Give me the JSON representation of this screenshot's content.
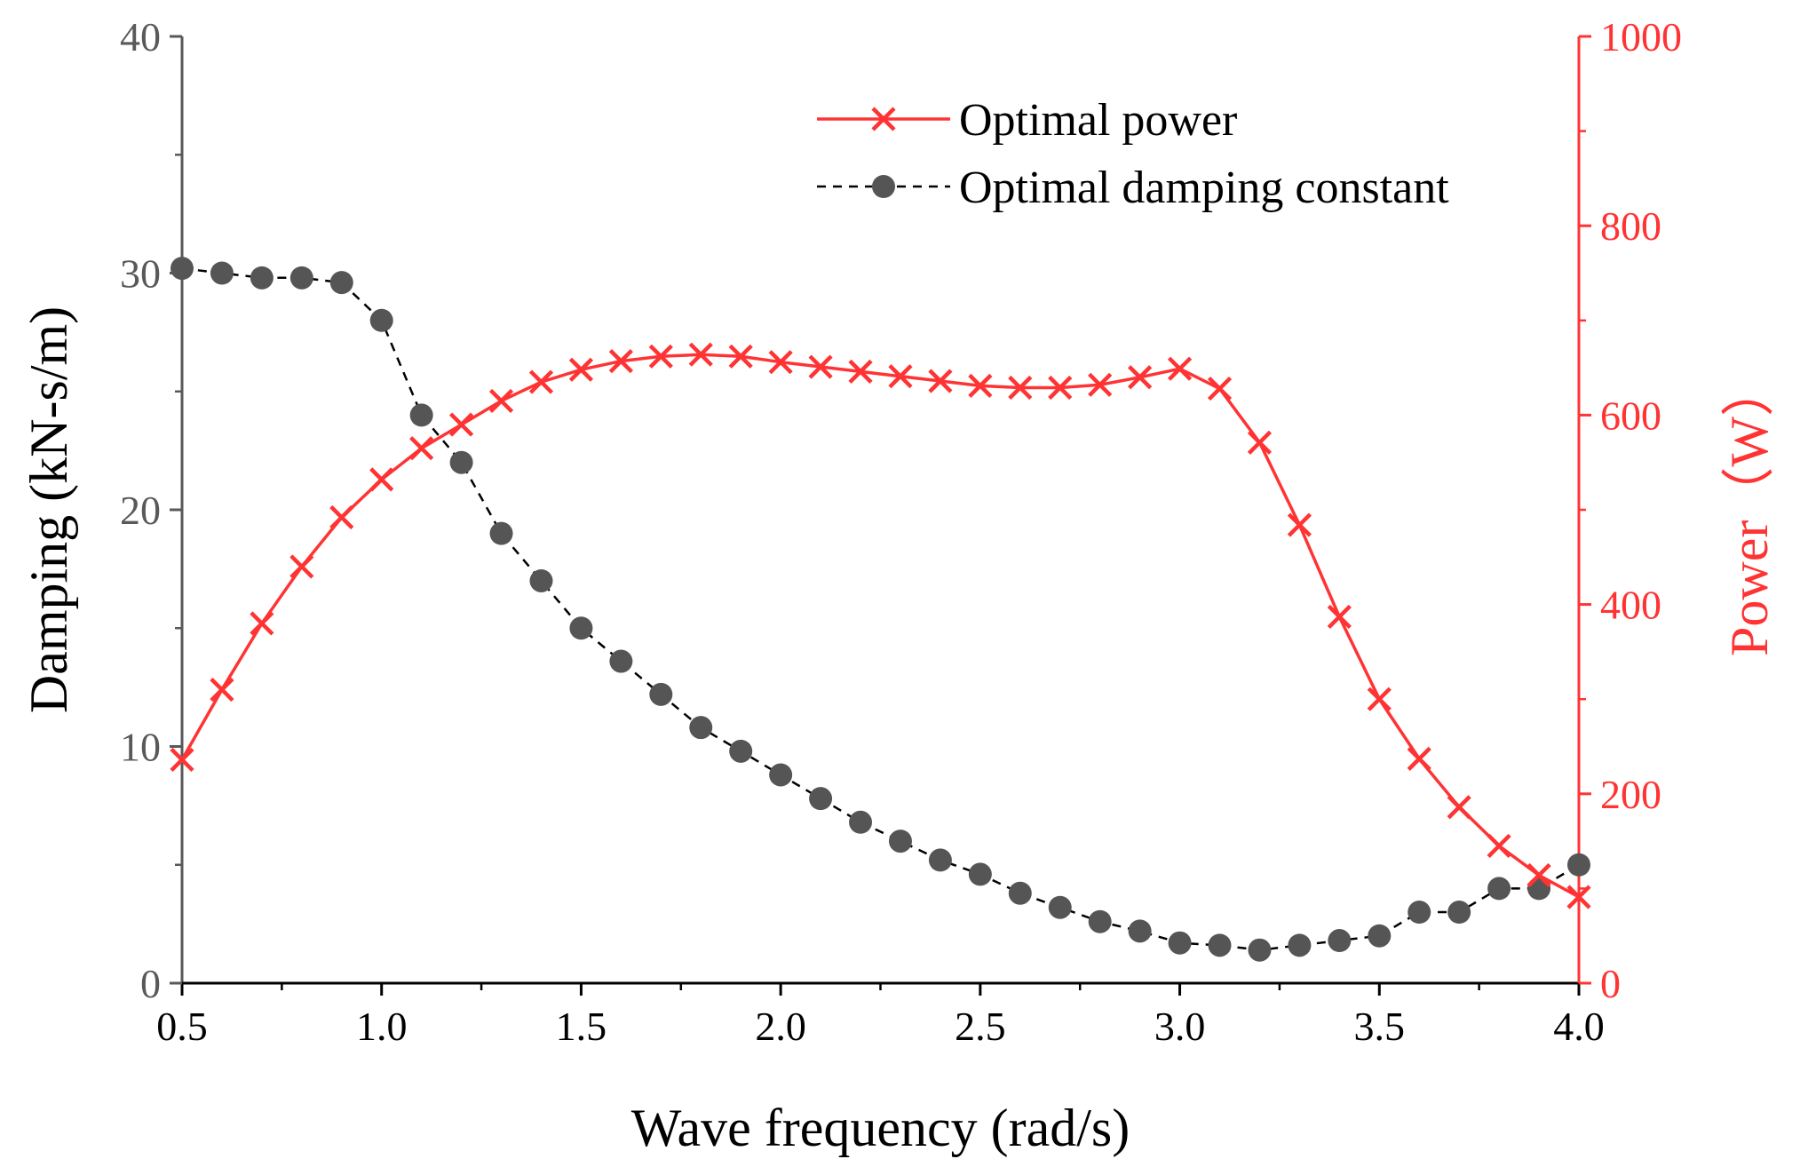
{
  "chart_data": {
    "type": "line",
    "x_axis": {
      "label": "Wave frequency (rad/s)",
      "range": [
        0.5,
        4.0
      ],
      "ticks": [
        "0.5",
        "1.0",
        "1.5",
        "2.0",
        "2.5",
        "3.0",
        "3.5",
        "4.0"
      ]
    },
    "y_axis_left": {
      "label": "Damping (kN-s/m)",
      "range": [
        0,
        40
      ],
      "ticks": [
        "0",
        "10",
        "20",
        "30",
        "40"
      ],
      "color": "#595959"
    },
    "y_axis_right": {
      "label": "Power（W）",
      "range": [
        0,
        1000
      ],
      "ticks": [
        "0",
        "200",
        "400",
        "600",
        "800",
        "1000"
      ],
      "color": "#ff3333"
    },
    "legend": {
      "placement": "top-right",
      "items": [
        {
          "label": "Optimal power",
          "color": "#ff3333"
        },
        {
          "label": "Optimal damping constant",
          "color": "#555555"
        }
      ]
    },
    "grid": false,
    "series": [
      {
        "name": "Optimal power",
        "axis": "right",
        "color": "#ff3333",
        "marker": "x",
        "line": "solid",
        "x": [
          0.5,
          0.6,
          0.7,
          0.8,
          0.9,
          1.0,
          1.1,
          1.2,
          1.3,
          1.4,
          1.5,
          1.6,
          1.7,
          1.8,
          1.9,
          2.0,
          2.1,
          2.2,
          2.3,
          2.4,
          2.5,
          2.6,
          2.7,
          2.8,
          2.9,
          3.0,
          3.1,
          3.2,
          3.3,
          3.4,
          3.5,
          3.6,
          3.7,
          3.8,
          3.9,
          4.0
        ],
        "y": [
          236,
          310,
          380,
          440,
          492,
          532,
          565,
          590,
          615,
          635,
          648,
          657,
          662,
          664,
          662,
          656,
          651,
          646,
          641,
          636,
          631,
          629,
          629,
          632,
          640,
          649,
          628,
          571,
          484,
          387,
          300,
          237,
          186,
          145,
          114,
          91
        ]
      },
      {
        "name": "Optimal damping constant",
        "axis": "left",
        "color": "#555555",
        "marker": "circle",
        "line": "dashed",
        "x": [
          0.5,
          0.6,
          0.7,
          0.8,
          0.9,
          1.0,
          1.1,
          1.2,
          1.3,
          1.4,
          1.5,
          1.6,
          1.7,
          1.8,
          1.9,
          2.0,
          2.1,
          2.2,
          2.3,
          2.4,
          2.5,
          2.6,
          2.7,
          2.8,
          2.9,
          3.0,
          3.1,
          3.2,
          3.3,
          3.4,
          3.5,
          3.6,
          3.7,
          3.8,
          3.9,
          4.0
        ],
        "y": [
          30.2,
          30.0,
          29.8,
          29.8,
          29.6,
          28.0,
          24.0,
          22.0,
          19.0,
          17.0,
          15.0,
          13.6,
          12.2,
          10.8,
          9.8,
          8.8,
          7.8,
          6.8,
          6.0,
          5.2,
          4.6,
          3.8,
          3.2,
          2.6,
          2.2,
          1.7,
          1.6,
          1.4,
          1.6,
          1.8,
          2.0,
          3.0,
          3.0,
          4.0,
          4.0,
          5.0
        ]
      }
    ]
  }
}
